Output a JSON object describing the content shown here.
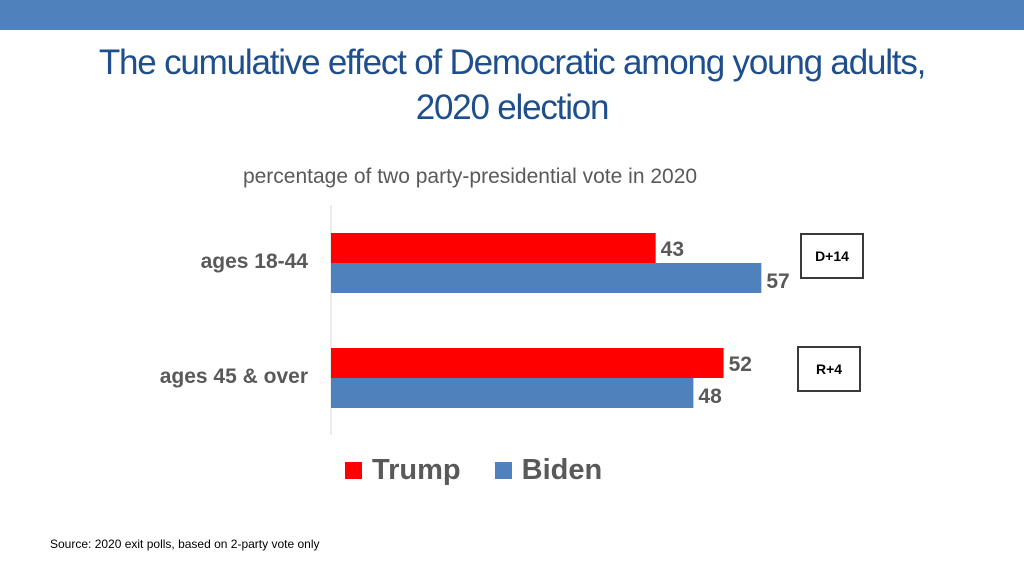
{
  "title_line1": "The cumulative effect of Democratic among young adults,",
  "title_line2": "2020 election",
  "subtitle": "percentage of two party-presidential vote in 2020",
  "source": "Source: 2020 exit polls, based on 2-party vote only",
  "colors": {
    "trump": "#ff0000",
    "biden": "#4f81bd",
    "band": "#4f81bd",
    "title": "#1f4e8c"
  },
  "chart_data": {
    "type": "bar",
    "orientation": "horizontal",
    "title": "percentage of two party-presidential vote in 2020",
    "categories": [
      "ages 18-44",
      "ages 45 & over"
    ],
    "series": [
      {
        "name": "Trump",
        "values": [
          43,
          52
        ]
      },
      {
        "name": "Biden",
        "values": [
          57,
          48
        ]
      }
    ],
    "differences": [
      "D+14",
      "R+4"
    ],
    "xlim": [
      0,
      60
    ],
    "grid": false,
    "legend_position": "bottom"
  }
}
